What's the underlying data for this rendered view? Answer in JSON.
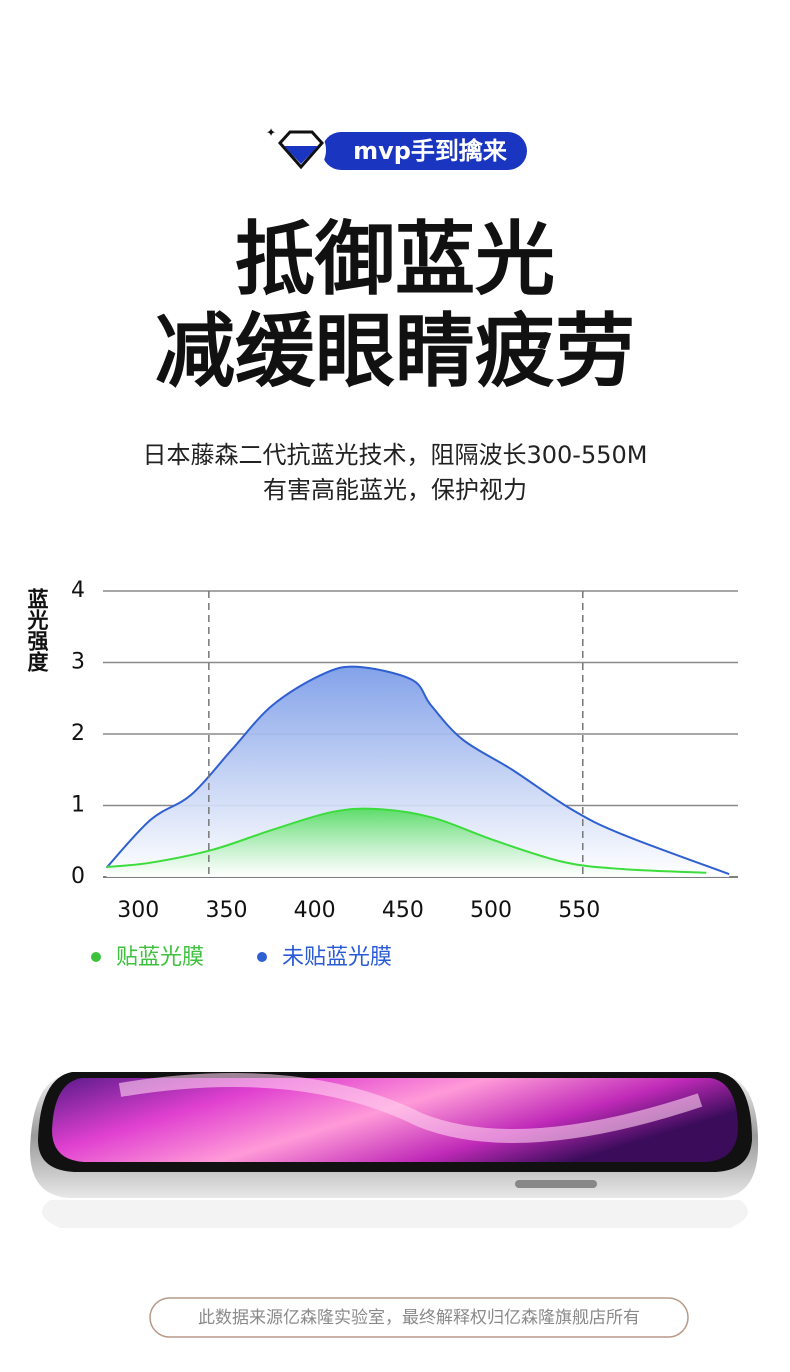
{
  "badge": "mvp手到擒来",
  "headline": [
    "抵御蓝光",
    "减缓眼睛疲劳"
  ],
  "description": [
    "日本藤森二代抗蓝光技术，阻隔波长300-550M",
    "有害高能蓝光，保护视力"
  ],
  "footer": "此数据来源亿森隆实验室，最终解释权归亿森隆旗舰店所有",
  "chart_data": {
    "type": "line",
    "y_label": "蓝光强度",
    "xlim": [
      280,
      640
    ],
    "xticks": [
      300,
      350,
      400,
      450,
      500,
      550
    ],
    "ylim": [
      0,
      4
    ],
    "yticks": [
      0,
      1,
      2,
      3,
      4
    ],
    "grid": true,
    "area": true,
    "vlines": [
      340,
      552
    ],
    "series": [
      {
        "name": "贴蓝光膜",
        "color": "#3ddc3d",
        "x": [
          282,
          307,
          342,
          376,
          410,
          436,
          467,
          501,
          541,
          575,
          622
        ],
        "values": [
          0.14,
          0.2,
          0.38,
          0.66,
          0.91,
          0.95,
          0.83,
          0.52,
          0.21,
          0.11,
          0.06
        ]
      },
      {
        "name": "未贴蓝光膜",
        "color": "#2f5fd0",
        "x": [
          282,
          307,
          330,
          353,
          376,
          404,
          424,
          455,
          466,
          484,
          512,
          546,
          575,
          635
        ],
        "values": [
          0.13,
          0.8,
          1.15,
          1.78,
          2.4,
          2.83,
          2.94,
          2.76,
          2.4,
          1.92,
          1.5,
          0.94,
          0.59,
          0.04
        ]
      }
    ]
  }
}
